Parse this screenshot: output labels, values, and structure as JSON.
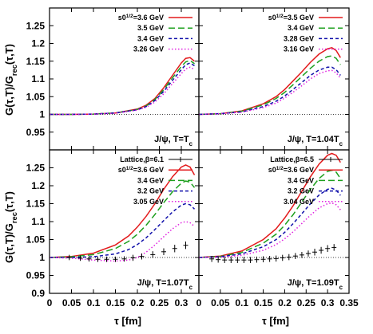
{
  "figure": {
    "ylabel": "G(τ,T)/G_rec(τ,T)",
    "xlabel": "τ [fm]"
  },
  "chart_data": [
    {
      "type": "line",
      "panel": "top-left",
      "annotation": "J/ψ, T=T_c",
      "xlim": [
        0,
        0.34
      ],
      "ylim": [
        0.9,
        1.3
      ],
      "x_ticks": [
        "0",
        "0.05",
        "0.1",
        "0.15",
        "0.2",
        "0.25",
        "0.3"
      ],
      "y_ticks": [
        "0.95",
        "1",
        "1.05",
        "1.1",
        "1.15",
        "1.2",
        "1.25"
      ],
      "reference_line": 1.0,
      "series": [
        {
          "name": "s0^{1/2}=3.6 GeV",
          "color": "#e31a1c",
          "dash": "solid",
          "x": [
            0,
            0.05,
            0.1,
            0.15,
            0.2,
            0.22,
            0.24,
            0.26,
            0.28,
            0.3,
            0.31,
            0.32,
            0.33
          ],
          "y": [
            1.0,
            1.0,
            1.001,
            1.004,
            1.015,
            1.026,
            1.045,
            1.075,
            1.11,
            1.145,
            1.158,
            1.16,
            1.15
          ]
        },
        {
          "name": "3.5 GeV",
          "color": "#1ea01e",
          "dash": "8,4",
          "x": [
            0,
            0.05,
            0.1,
            0.15,
            0.2,
            0.22,
            0.24,
            0.26,
            0.28,
            0.3,
            0.31,
            0.32,
            0.33
          ],
          "y": [
            1.0,
            1.0,
            1.001,
            1.004,
            1.014,
            1.024,
            1.042,
            1.07,
            1.103,
            1.135,
            1.148,
            1.152,
            1.143
          ]
        },
        {
          "name": "3.4 GeV",
          "color": "#1010aa",
          "dash": "4,3",
          "x": [
            0,
            0.05,
            0.1,
            0.15,
            0.2,
            0.22,
            0.24,
            0.26,
            0.28,
            0.3,
            0.31,
            0.32,
            0.33
          ],
          "y": [
            1.0,
            1.0,
            1.001,
            1.004,
            1.013,
            1.022,
            1.039,
            1.065,
            1.096,
            1.126,
            1.14,
            1.145,
            1.137
          ]
        },
        {
          "name": "3.26 GeV",
          "color": "#e020e0",
          "dash": "1.5,2.5",
          "x": [
            0,
            0.05,
            0.1,
            0.15,
            0.2,
            0.22,
            0.24,
            0.26,
            0.28,
            0.3,
            0.31,
            0.32,
            0.33
          ],
          "y": [
            1.0,
            1.0,
            1.001,
            1.003,
            1.012,
            1.02,
            1.035,
            1.058,
            1.087,
            1.115,
            1.128,
            1.133,
            1.127
          ]
        }
      ]
    },
    {
      "type": "line",
      "panel": "top-right",
      "annotation": "J/ψ, T=1.04T_c",
      "xlim": [
        0,
        0.35
      ],
      "ylim": [
        0.9,
        1.3
      ],
      "x_ticks": [
        "0",
        "0.05",
        "0.1",
        "0.15",
        "0.2",
        "0.25",
        "0.3",
        "0.35"
      ],
      "y_ticks": [
        "0.95",
        "1",
        "1.05",
        "1.1",
        "1.15",
        "1.2",
        "1.25"
      ],
      "reference_line": 1.0,
      "series": [
        {
          "name": "s0^{1/2}=3.5 GeV",
          "color": "#e31a1c",
          "dash": "solid",
          "x": [
            0,
            0.05,
            0.1,
            0.15,
            0.18,
            0.2,
            0.22,
            0.24,
            0.26,
            0.28,
            0.3,
            0.31,
            0.32,
            0.33
          ],
          "y": [
            1.0,
            1.002,
            1.01,
            1.03,
            1.05,
            1.07,
            1.095,
            1.12,
            1.147,
            1.17,
            1.185,
            1.188,
            1.18,
            1.16
          ]
        },
        {
          "name": "3.4 GeV",
          "color": "#1ea01e",
          "dash": "8,4",
          "x": [
            0,
            0.05,
            0.1,
            0.15,
            0.18,
            0.2,
            0.22,
            0.24,
            0.26,
            0.28,
            0.3,
            0.31,
            0.32,
            0.33
          ],
          "y": [
            1.0,
            1.002,
            1.009,
            1.027,
            1.045,
            1.062,
            1.084,
            1.107,
            1.13,
            1.15,
            1.163,
            1.165,
            1.158,
            1.14
          ]
        },
        {
          "name": "3.28 GeV",
          "color": "#1010aa",
          "dash": "4,3",
          "x": [
            0,
            0.05,
            0.1,
            0.15,
            0.18,
            0.2,
            0.22,
            0.24,
            0.26,
            0.28,
            0.3,
            0.31,
            0.32,
            0.33
          ],
          "y": [
            1.0,
            1.002,
            1.007,
            1.022,
            1.037,
            1.052,
            1.071,
            1.09,
            1.11,
            1.125,
            1.133,
            1.133,
            1.126,
            1.11
          ]
        },
        {
          "name": "3.16 GeV",
          "color": "#e020e0",
          "dash": "1.5,2.5",
          "x": [
            0,
            0.05,
            0.1,
            0.15,
            0.18,
            0.2,
            0.22,
            0.24,
            0.26,
            0.28,
            0.3,
            0.31,
            0.32,
            0.33
          ],
          "y": [
            1.0,
            1.002,
            1.006,
            1.019,
            1.032,
            1.046,
            1.063,
            1.081,
            1.1,
            1.115,
            1.123,
            1.124,
            1.117,
            1.102
          ]
        }
      ]
    },
    {
      "type": "line",
      "panel": "bottom-left",
      "annotation": "J/ψ, T=1.07T_c",
      "xlim": [
        0,
        0.34
      ],
      "ylim": [
        0.9,
        1.3
      ],
      "x_ticks": [
        "0",
        "0.05",
        "0.1",
        "0.15",
        "0.2",
        "0.25",
        "0.3"
      ],
      "y_ticks": [
        "0.9",
        "0.95",
        "1",
        "1.05",
        "1.1",
        "1.15",
        "1.2",
        "1.25"
      ],
      "reference_line": 1.0,
      "series": [
        {
          "name": "s0^{1/2}=3.6 GeV",
          "color": "#e31a1c",
          "dash": "solid",
          "x": [
            0,
            0.05,
            0.1,
            0.15,
            0.18,
            0.2,
            0.22,
            0.24,
            0.26,
            0.28,
            0.3,
            0.31,
            0.32,
            0.33
          ],
          "y": [
            1.0,
            1.003,
            1.012,
            1.035,
            1.06,
            1.085,
            1.115,
            1.15,
            1.19,
            1.225,
            1.252,
            1.258,
            1.252,
            1.23
          ]
        },
        {
          "name": "3.4 GeV",
          "color": "#1ea01e",
          "dash": "8,4",
          "x": [
            0,
            0.05,
            0.1,
            0.15,
            0.18,
            0.2,
            0.22,
            0.24,
            0.26,
            0.28,
            0.3,
            0.31,
            0.32,
            0.33
          ],
          "y": [
            1.0,
            1.002,
            1.008,
            1.025,
            1.045,
            1.065,
            1.09,
            1.12,
            1.153,
            1.183,
            1.207,
            1.213,
            1.21,
            1.195
          ]
        },
        {
          "name": "3.2 GeV",
          "color": "#1010aa",
          "dash": "4,3",
          "x": [
            0,
            0.05,
            0.1,
            0.15,
            0.18,
            0.2,
            0.22,
            0.24,
            0.26,
            0.28,
            0.3,
            0.31,
            0.32,
            0.33
          ],
          "y": [
            1.0,
            1.0,
            1.002,
            1.01,
            1.022,
            1.036,
            1.055,
            1.078,
            1.103,
            1.127,
            1.146,
            1.15,
            1.147,
            1.135
          ]
        },
        {
          "name": "3.05 GeV",
          "color": "#e020e0",
          "dash": "1.5,2.5",
          "x": [
            0,
            0.05,
            0.1,
            0.15,
            0.18,
            0.2,
            0.22,
            0.24,
            0.26,
            0.28,
            0.3,
            0.31,
            0.32,
            0.33
          ],
          "y": [
            1.0,
            0.998,
            0.993,
            0.99,
            0.993,
            1.0,
            1.015,
            1.035,
            1.058,
            1.08,
            1.097,
            1.1,
            1.097,
            1.087
          ]
        }
      ],
      "lattice": {
        "name": "Lattice,β=6.1",
        "x": [
          0.045,
          0.07,
          0.09,
          0.11,
          0.13,
          0.15,
          0.17,
          0.19,
          0.21,
          0.235,
          0.26,
          0.285,
          0.31
        ],
        "y": [
          1.0,
          0.998,
          0.996,
          0.995,
          0.995,
          0.995,
          0.996,
          0.999,
          1.003,
          1.008,
          1.016,
          1.025,
          1.034
        ],
        "err": [
          0.003,
          0.003,
          0.003,
          0.003,
          0.003,
          0.003,
          0.003,
          0.004,
          0.004,
          0.005,
          0.005,
          0.006,
          0.006
        ]
      }
    },
    {
      "type": "line",
      "panel": "bottom-right",
      "annotation": "J/ψ, T=1.09T_c",
      "xlim": [
        0,
        0.35
      ],
      "ylim": [
        0.9,
        1.3
      ],
      "x_ticks": [
        "0",
        "0.05",
        "0.1",
        "0.15",
        "0.2",
        "0.25",
        "0.3",
        "0.35"
      ],
      "y_ticks": [
        "0.9",
        "0.95",
        "1",
        "1.05",
        "1.1",
        "1.15",
        "1.2",
        "1.25"
      ],
      "reference_line": 1.0,
      "series": [
        {
          "name": "s0^{1/2}=3.6 GeV",
          "color": "#e31a1c",
          "dash": "solid",
          "x": [
            0,
            0.05,
            0.1,
            0.15,
            0.18,
            0.2,
            0.22,
            0.24,
            0.26,
            0.28,
            0.3,
            0.31,
            0.32,
            0.33
          ],
          "y": [
            1.0,
            1.004,
            1.018,
            1.05,
            1.08,
            1.11,
            1.145,
            1.185,
            1.225,
            1.26,
            1.285,
            1.29,
            1.285,
            1.265
          ]
        },
        {
          "name": "3.4 GeV",
          "color": "#1ea01e",
          "dash": "8,4",
          "x": [
            0,
            0.05,
            0.1,
            0.15,
            0.18,
            0.2,
            0.22,
            0.24,
            0.26,
            0.28,
            0.3,
            0.31,
            0.32,
            0.33
          ],
          "y": [
            1.0,
            1.003,
            1.014,
            1.04,
            1.065,
            1.09,
            1.12,
            1.155,
            1.19,
            1.22,
            1.24,
            1.243,
            1.238,
            1.22
          ]
        },
        {
          "name": "3.2 GeV",
          "color": "#1010aa",
          "dash": "4,3",
          "x": [
            0,
            0.05,
            0.1,
            0.15,
            0.18,
            0.2,
            0.22,
            0.24,
            0.26,
            0.28,
            0.3,
            0.31,
            0.32,
            0.33
          ],
          "y": [
            1.0,
            1.002,
            1.01,
            1.03,
            1.05,
            1.07,
            1.095,
            1.122,
            1.15,
            1.174,
            1.19,
            1.193,
            1.188,
            1.173
          ]
        },
        {
          "name": "3.04 GeV",
          "color": "#e020e0",
          "dash": "1.5,2.5",
          "x": [
            0,
            0.05,
            0.1,
            0.15,
            0.18,
            0.2,
            0.22,
            0.24,
            0.26,
            0.28,
            0.3,
            0.31,
            0.32,
            0.33
          ],
          "y": [
            1.0,
            1.001,
            1.006,
            1.02,
            1.036,
            1.052,
            1.072,
            1.095,
            1.118,
            1.138,
            1.15,
            1.152,
            1.147,
            1.133
          ]
        }
      ],
      "lattice": {
        "name": "Lattice,β=6.5",
        "x": [
          0.03,
          0.045,
          0.06,
          0.075,
          0.09,
          0.105,
          0.12,
          0.135,
          0.15,
          0.165,
          0.18,
          0.195,
          0.21,
          0.225,
          0.24,
          0.255,
          0.27,
          0.285,
          0.3,
          0.315
        ],
        "y": [
          0.996,
          0.994,
          0.993,
          0.993,
          0.993,
          0.993,
          0.993,
          0.994,
          0.995,
          0.996,
          0.997,
          0.999,
          1.001,
          1.004,
          1.007,
          1.011,
          1.015,
          1.02,
          1.025,
          1.028
        ],
        "err": [
          0.004,
          0.004,
          0.004,
          0.004,
          0.004,
          0.004,
          0.004,
          0.004,
          0.004,
          0.004,
          0.004,
          0.004,
          0.004,
          0.004,
          0.004,
          0.004,
          0.005,
          0.005,
          0.005,
          0.005
        ]
      }
    }
  ]
}
